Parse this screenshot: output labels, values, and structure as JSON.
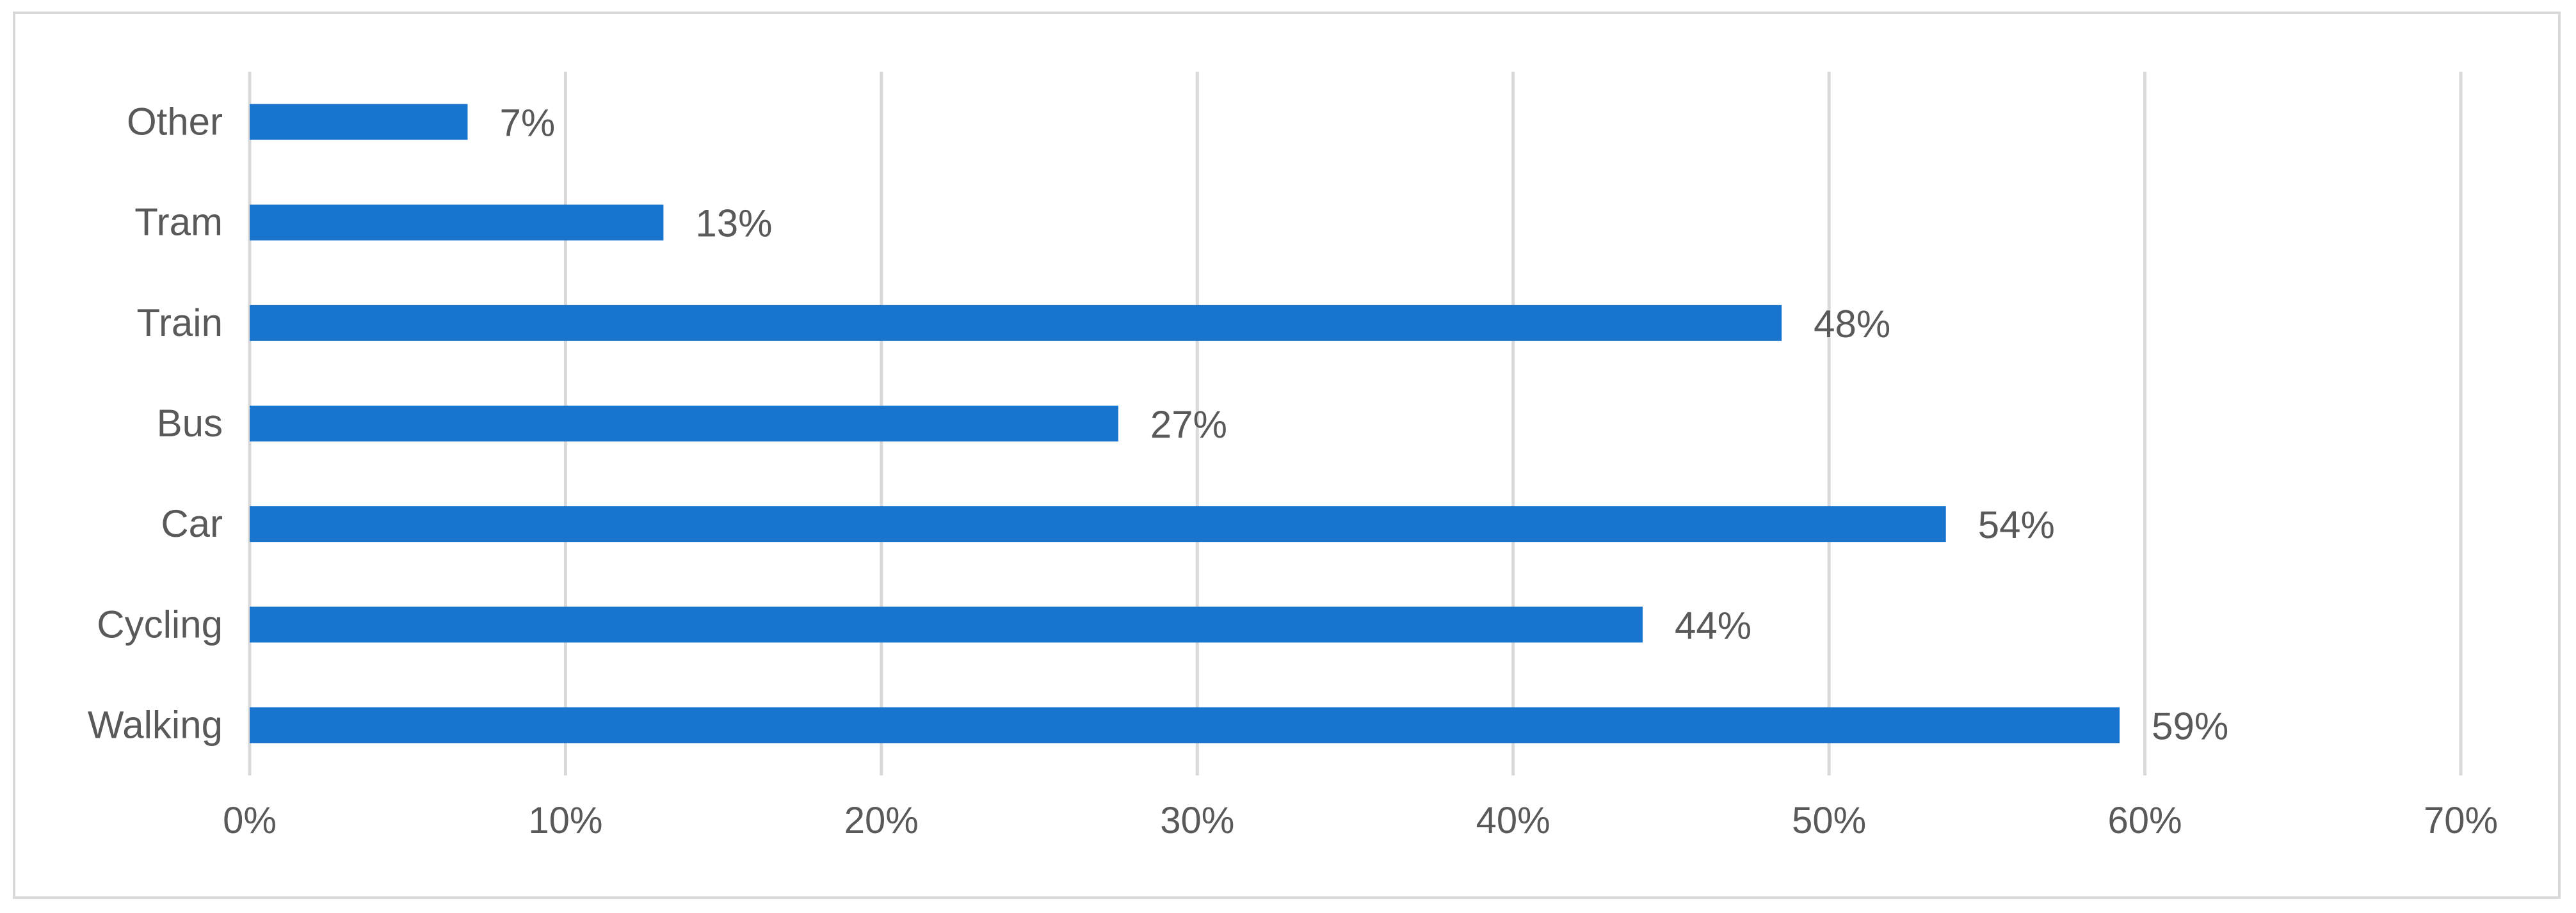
{
  "chart_data": {
    "type": "bar",
    "orientation": "horizontal",
    "title": "",
    "xlabel": "",
    "ylabel": "",
    "categories": [
      "Other",
      "Tram",
      "Train",
      "Bus",
      "Car",
      "Cycling",
      "Walking"
    ],
    "values": [
      6.9,
      13.1,
      48.5,
      27.5,
      53.7,
      44.1,
      59.2
    ],
    "data_labels": [
      "7%",
      "13%",
      "48%",
      "27%",
      "54%",
      "44%",
      "59%"
    ],
    "xlim": [
      0,
      70
    ],
    "x_ticks": [
      0,
      10,
      20,
      30,
      40,
      50,
      60,
      70
    ],
    "x_tick_labels": [
      "0%",
      "10%",
      "20%",
      "30%",
      "40%",
      "50%",
      "60%",
      "70%"
    ],
    "grid": "vertical",
    "legend": "none",
    "bar_color": "#1874CD",
    "gridline_color": "#d9d9d9",
    "text_color": "#595959"
  }
}
